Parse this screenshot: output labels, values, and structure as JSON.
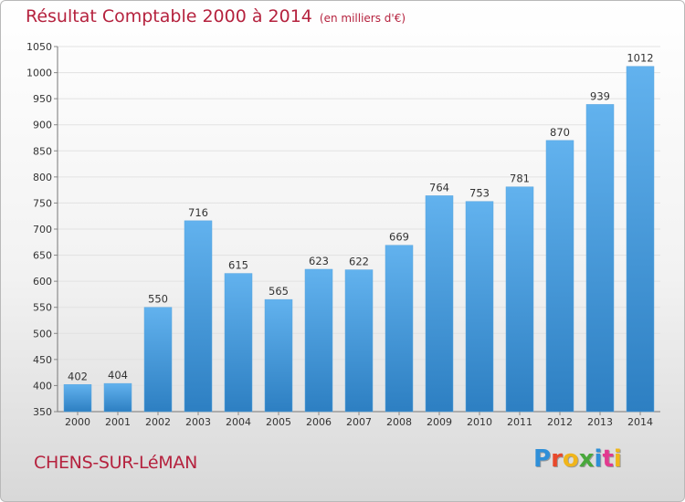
{
  "title": "Résultat Comptable 2000 à 2014",
  "unit": "(en milliers d'€)",
  "city": "CHENS-SUR-LéMAN",
  "logo": {
    "letters": [
      "P",
      "r",
      "o",
      "x",
      "i",
      "t",
      "i"
    ],
    "colors": [
      "#2f8fd8",
      "#e8492b",
      "#f0b51b",
      "#49a83c",
      "#2f8fd8",
      "#e23a8f",
      "#f0b51b"
    ]
  },
  "colors": {
    "bar_top": "#62b2ee",
    "bar_bottom": "#2d7fc2",
    "title": "#b5223e"
  },
  "chart_data": {
    "type": "bar",
    "categories": [
      "2000",
      "2001",
      "2002",
      "2003",
      "2004",
      "2005",
      "2006",
      "2007",
      "2008",
      "2009",
      "2010",
      "2011",
      "2012",
      "2013",
      "2014"
    ],
    "values": [
      402,
      404,
      550,
      716,
      615,
      565,
      623,
      622,
      669,
      764,
      753,
      781,
      870,
      939,
      1012
    ],
    "ylim": [
      350,
      1050
    ],
    "yticks": [
      350,
      400,
      450,
      500,
      550,
      600,
      650,
      700,
      750,
      800,
      850,
      900,
      950,
      1000,
      1050
    ],
    "grid": true
  }
}
